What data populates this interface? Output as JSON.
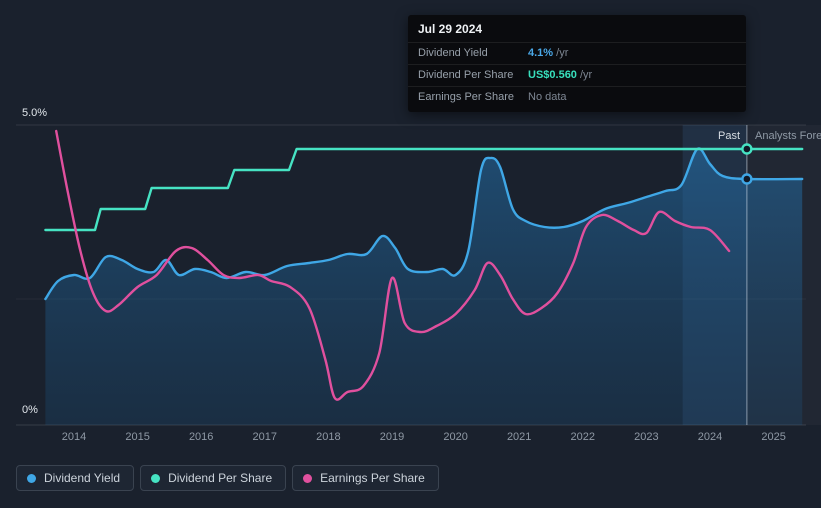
{
  "tooltip": {
    "date": "Jul 29 2024",
    "rows": [
      {
        "label": "Dividend Yield",
        "value": "4.1%",
        "unit": " /yr"
      },
      {
        "label": "Dividend Per Share",
        "value": "US$0.560",
        "unit": " /yr"
      },
      {
        "label": "Earnings Per Share",
        "value": "No data",
        "unit": ""
      }
    ]
  },
  "annotations": {
    "past_label": "Past",
    "forecast_label": "Analysts Forecasts"
  },
  "legend": [
    {
      "label": "Dividend Yield",
      "color": "#3fa7e6"
    },
    {
      "label": "Dividend Per Share",
      "color": "#46e3c3"
    },
    {
      "label": "Earnings Per Share",
      "color": "#e0509e"
    }
  ],
  "chart_data": {
    "type": "line",
    "note": "values read from a 0%-5% display scale; dividend per share / EPS are plotted on this normalized scale",
    "y_axis": {
      "top_label": "5.0%",
      "bottom_label": "0%",
      "range_pct": [
        0,
        5
      ]
    },
    "x_axis": {
      "years": [
        "2014",
        "2015",
        "2016",
        "2017",
        "2018",
        "2019",
        "2020",
        "2021",
        "2022",
        "2023",
        "2024",
        "2025"
      ]
    },
    "grid_values_pct": [
      5,
      2.1,
      0
    ],
    "past_divider_year": 2024.58,
    "highlight_band_years": [
      2023.57,
      2024.58
    ],
    "series": [
      {
        "name": "Dividend Yield",
        "color": "#3fa7e6",
        "style": "smooth",
        "area": true,
        "points": [
          [
            2013.55,
            2.1
          ],
          [
            2013.75,
            2.4
          ],
          [
            2014.0,
            2.5
          ],
          [
            2014.25,
            2.45
          ],
          [
            2014.5,
            2.8
          ],
          [
            2014.75,
            2.75
          ],
          [
            2015.0,
            2.6
          ],
          [
            2015.25,
            2.55
          ],
          [
            2015.45,
            2.75
          ],
          [
            2015.65,
            2.5
          ],
          [
            2015.9,
            2.6
          ],
          [
            2016.15,
            2.55
          ],
          [
            2016.4,
            2.45
          ],
          [
            2016.7,
            2.55
          ],
          [
            2017.0,
            2.5
          ],
          [
            2017.35,
            2.65
          ],
          [
            2017.7,
            2.7
          ],
          [
            2018.0,
            2.75
          ],
          [
            2018.3,
            2.85
          ],
          [
            2018.6,
            2.85
          ],
          [
            2018.85,
            3.15
          ],
          [
            2019.05,
            2.95
          ],
          [
            2019.25,
            2.6
          ],
          [
            2019.55,
            2.55
          ],
          [
            2019.8,
            2.6
          ],
          [
            2020.0,
            2.5
          ],
          [
            2020.2,
            2.9
          ],
          [
            2020.4,
            4.25
          ],
          [
            2020.55,
            4.45
          ],
          [
            2020.7,
            4.3
          ],
          [
            2020.9,
            3.6
          ],
          [
            2021.1,
            3.4
          ],
          [
            2021.4,
            3.3
          ],
          [
            2021.7,
            3.3
          ],
          [
            2022.0,
            3.4
          ],
          [
            2022.35,
            3.6
          ],
          [
            2022.7,
            3.7
          ],
          [
            2023.0,
            3.8
          ],
          [
            2023.3,
            3.9
          ],
          [
            2023.55,
            4.0
          ],
          [
            2023.8,
            4.6
          ],
          [
            2024.0,
            4.35
          ],
          [
            2024.2,
            4.15
          ],
          [
            2024.58,
            4.1
          ],
          [
            2025.45,
            4.1
          ]
        ]
      },
      {
        "name": "Dividend Per Share",
        "color": "#46e3c3",
        "style": "linear",
        "area": false,
        "points": [
          [
            2013.55,
            3.25
          ],
          [
            2014.33,
            3.25
          ],
          [
            2014.42,
            3.6
          ],
          [
            2015.12,
            3.6
          ],
          [
            2015.22,
            3.95
          ],
          [
            2016.42,
            3.95
          ],
          [
            2016.52,
            4.25
          ],
          [
            2017.38,
            4.25
          ],
          [
            2017.5,
            4.6
          ],
          [
            2024.58,
            4.6
          ],
          [
            2025.45,
            4.6
          ]
        ]
      },
      {
        "name": "Earnings Per Share",
        "color": "#e0509e",
        "style": "smooth",
        "area": false,
        "points": [
          [
            2013.72,
            4.9
          ],
          [
            2013.9,
            3.9
          ],
          [
            2014.1,
            2.9
          ],
          [
            2014.3,
            2.2
          ],
          [
            2014.5,
            1.9
          ],
          [
            2014.7,
            2.0
          ],
          [
            2015.0,
            2.3
          ],
          [
            2015.3,
            2.5
          ],
          [
            2015.6,
            2.9
          ],
          [
            2015.85,
            2.95
          ],
          [
            2016.1,
            2.75
          ],
          [
            2016.35,
            2.5
          ],
          [
            2016.6,
            2.45
          ],
          [
            2016.9,
            2.5
          ],
          [
            2017.1,
            2.4
          ],
          [
            2017.4,
            2.3
          ],
          [
            2017.7,
            1.95
          ],
          [
            2017.95,
            1.1
          ],
          [
            2018.1,
            0.45
          ],
          [
            2018.3,
            0.55
          ],
          [
            2018.55,
            0.65
          ],
          [
            2018.8,
            1.2
          ],
          [
            2019.0,
            2.45
          ],
          [
            2019.2,
            1.7
          ],
          [
            2019.45,
            1.55
          ],
          [
            2019.7,
            1.65
          ],
          [
            2020.0,
            1.85
          ],
          [
            2020.3,
            2.25
          ],
          [
            2020.5,
            2.7
          ],
          [
            2020.7,
            2.5
          ],
          [
            2020.9,
            2.1
          ],
          [
            2021.1,
            1.85
          ],
          [
            2021.35,
            1.95
          ],
          [
            2021.6,
            2.2
          ],
          [
            2021.85,
            2.7
          ],
          [
            2022.05,
            3.3
          ],
          [
            2022.3,
            3.5
          ],
          [
            2022.55,
            3.4
          ],
          [
            2022.8,
            3.25
          ],
          [
            2023.0,
            3.2
          ],
          [
            2023.2,
            3.55
          ],
          [
            2023.45,
            3.4
          ],
          [
            2023.7,
            3.3
          ],
          [
            2024.0,
            3.25
          ],
          [
            2024.3,
            2.9
          ]
        ]
      }
    ],
    "end_markers": [
      {
        "series": "Dividend Per Share",
        "year": 2024.58,
        "value_pct": 4.6,
        "color": "#46e3c3"
      },
      {
        "series": "Dividend Yield",
        "year": 2024.58,
        "value_pct": 4.1,
        "color": "#3fa7e6"
      }
    ]
  }
}
